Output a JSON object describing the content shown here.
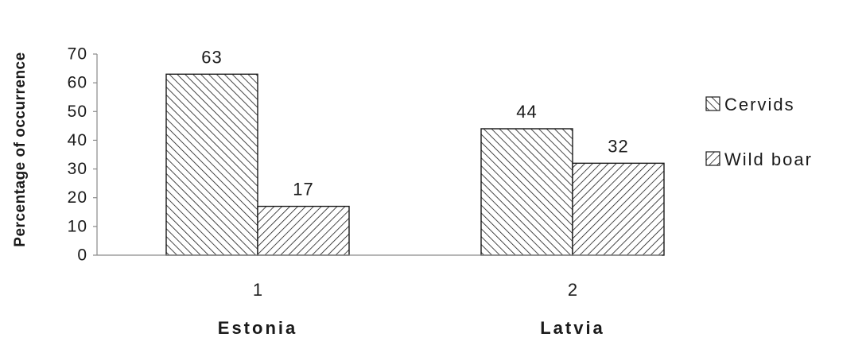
{
  "chart_data": {
    "type": "bar",
    "categories": [
      "1",
      "2"
    ],
    "group_labels": [
      "Estonia",
      "Latvia"
    ],
    "series": [
      {
        "name": "Cervids",
        "values": [
          63,
          44
        ],
        "pattern": "backslash-hatch"
      },
      {
        "name": "Wild boar",
        "values": [
          17,
          32
        ],
        "pattern": "slash-hatch"
      }
    ],
    "data_labels": [
      "63",
      "17",
      "44",
      "32"
    ],
    "ylabel": "Percentage of occurrence",
    "xlabel": "",
    "ylim": [
      0,
      70
    ],
    "yticks": [
      0,
      10,
      20,
      30,
      40,
      50,
      60,
      70
    ],
    "grid": false,
    "legend_position": "right",
    "colors": {
      "ink": "#1a1a1a",
      "axis": "#8a8a8a",
      "background": "#ffffff"
    }
  }
}
